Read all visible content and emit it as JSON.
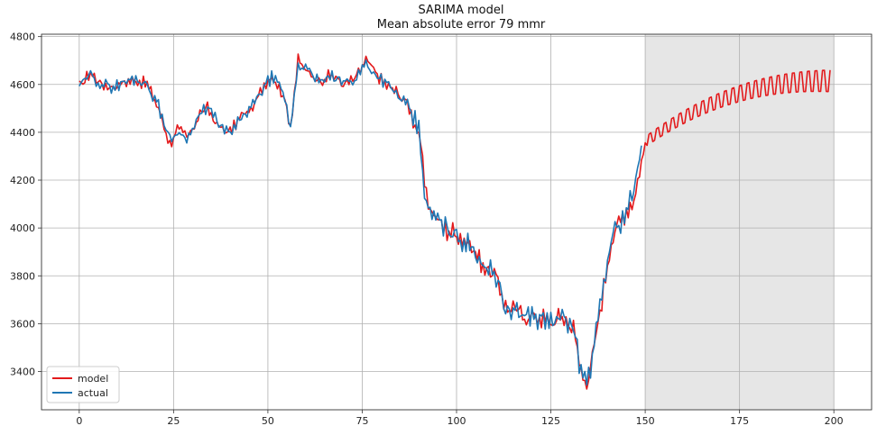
{
  "chart_data": {
    "type": "line",
    "title": "SARIMA model",
    "subtitle": "Mean absolute error 79 mmr",
    "xlabel": "",
    "ylabel": "",
    "xlim": [
      -10,
      210
    ],
    "ylim": [
      3240,
      4810
    ],
    "x_ticks": [
      0,
      25,
      50,
      75,
      100,
      125,
      150,
      175,
      200
    ],
    "y_ticks": [
      3400,
      3600,
      3800,
      4000,
      4200,
      4400,
      4600,
      4800
    ],
    "grid": true,
    "legend": "lower-left",
    "forecast_region": {
      "x_start": 150,
      "x_end": 200,
      "color": "#e6e6e6"
    },
    "series": [
      {
        "name": "model",
        "color": "#e31a1c",
        "anchors": [
          [
            0,
            4590
          ],
          [
            3,
            4650
          ],
          [
            6,
            4600
          ],
          [
            9,
            4590
          ],
          [
            12,
            4610
          ],
          [
            15,
            4620
          ],
          [
            18,
            4600
          ],
          [
            21,
            4500
          ],
          [
            24,
            4350
          ],
          [
            26,
            4410
          ],
          [
            29,
            4380
          ],
          [
            32,
            4480
          ],
          [
            34,
            4500
          ],
          [
            37,
            4420
          ],
          [
            40,
            4400
          ],
          [
            43,
            4470
          ],
          [
            46,
            4500
          ],
          [
            49,
            4600
          ],
          [
            51,
            4640
          ],
          [
            54,
            4560
          ],
          [
            56,
            4430
          ],
          [
            58,
            4700
          ],
          [
            61,
            4640
          ],
          [
            64,
            4620
          ],
          [
            67,
            4640
          ],
          [
            70,
            4600
          ],
          [
            73,
            4620
          ],
          [
            76,
            4700
          ],
          [
            78,
            4660
          ],
          [
            81,
            4600
          ],
          [
            84,
            4570
          ],
          [
            87,
            4520
          ],
          [
            90,
            4400
          ],
          [
            92,
            4120
          ],
          [
            94,
            4060
          ],
          [
            97,
            3990
          ],
          [
            100,
            3980
          ],
          [
            103,
            3940
          ],
          [
            106,
            3870
          ],
          [
            109,
            3810
          ],
          [
            111,
            3780
          ],
          [
            113,
            3670
          ],
          [
            116,
            3650
          ],
          [
            119,
            3630
          ],
          [
            122,
            3630
          ],
          [
            125,
            3600
          ],
          [
            128,
            3630
          ],
          [
            131,
            3580
          ],
          [
            133,
            3400
          ],
          [
            135,
            3360
          ],
          [
            137,
            3550
          ],
          [
            139,
            3750
          ],
          [
            141,
            3950
          ],
          [
            144,
            4050
          ],
          [
            147,
            4120
          ],
          [
            150,
            4350
          ]
        ],
        "forecast": {
          "x_start": 150,
          "x_end": 199,
          "period": 2,
          "center_start": 4360,
          "center_end": 4615,
          "amplitude_start": 20,
          "amplitude_end": 45
        }
      },
      {
        "name": "actual",
        "color": "#1f77b4",
        "anchors": [
          [
            0,
            4590
          ],
          [
            3,
            4640
          ],
          [
            6,
            4600
          ],
          [
            9,
            4590
          ],
          [
            12,
            4610
          ],
          [
            15,
            4625
          ],
          [
            18,
            4600
          ],
          [
            21,
            4510
          ],
          [
            24,
            4370
          ],
          [
            26,
            4400
          ],
          [
            29,
            4380
          ],
          [
            32,
            4470
          ],
          [
            34,
            4510
          ],
          [
            37,
            4430
          ],
          [
            40,
            4390
          ],
          [
            43,
            4460
          ],
          [
            46,
            4510
          ],
          [
            49,
            4590
          ],
          [
            51,
            4630
          ],
          [
            54,
            4570
          ],
          [
            56,
            4420
          ],
          [
            58,
            4690
          ],
          [
            61,
            4650
          ],
          [
            64,
            4610
          ],
          [
            67,
            4630
          ],
          [
            70,
            4610
          ],
          [
            73,
            4620
          ],
          [
            76,
            4690
          ],
          [
            78,
            4650
          ],
          [
            81,
            4610
          ],
          [
            84,
            4560
          ],
          [
            87,
            4510
          ],
          [
            90,
            4410
          ],
          [
            92,
            4080
          ],
          [
            94,
            4050
          ],
          [
            97,
            4000
          ],
          [
            100,
            3970
          ],
          [
            103,
            3930
          ],
          [
            106,
            3880
          ],
          [
            109,
            3820
          ],
          [
            111,
            3790
          ],
          [
            113,
            3660
          ],
          [
            116,
            3640
          ],
          [
            119,
            3640
          ],
          [
            122,
            3620
          ],
          [
            125,
            3610
          ],
          [
            128,
            3620
          ],
          [
            131,
            3590
          ],
          [
            133,
            3390
          ],
          [
            135,
            3370
          ],
          [
            137,
            3560
          ],
          [
            139,
            3760
          ],
          [
            141,
            3960
          ],
          [
            144,
            4040
          ],
          [
            147,
            4150
          ],
          [
            149,
            4330
          ]
        ]
      }
    ]
  }
}
